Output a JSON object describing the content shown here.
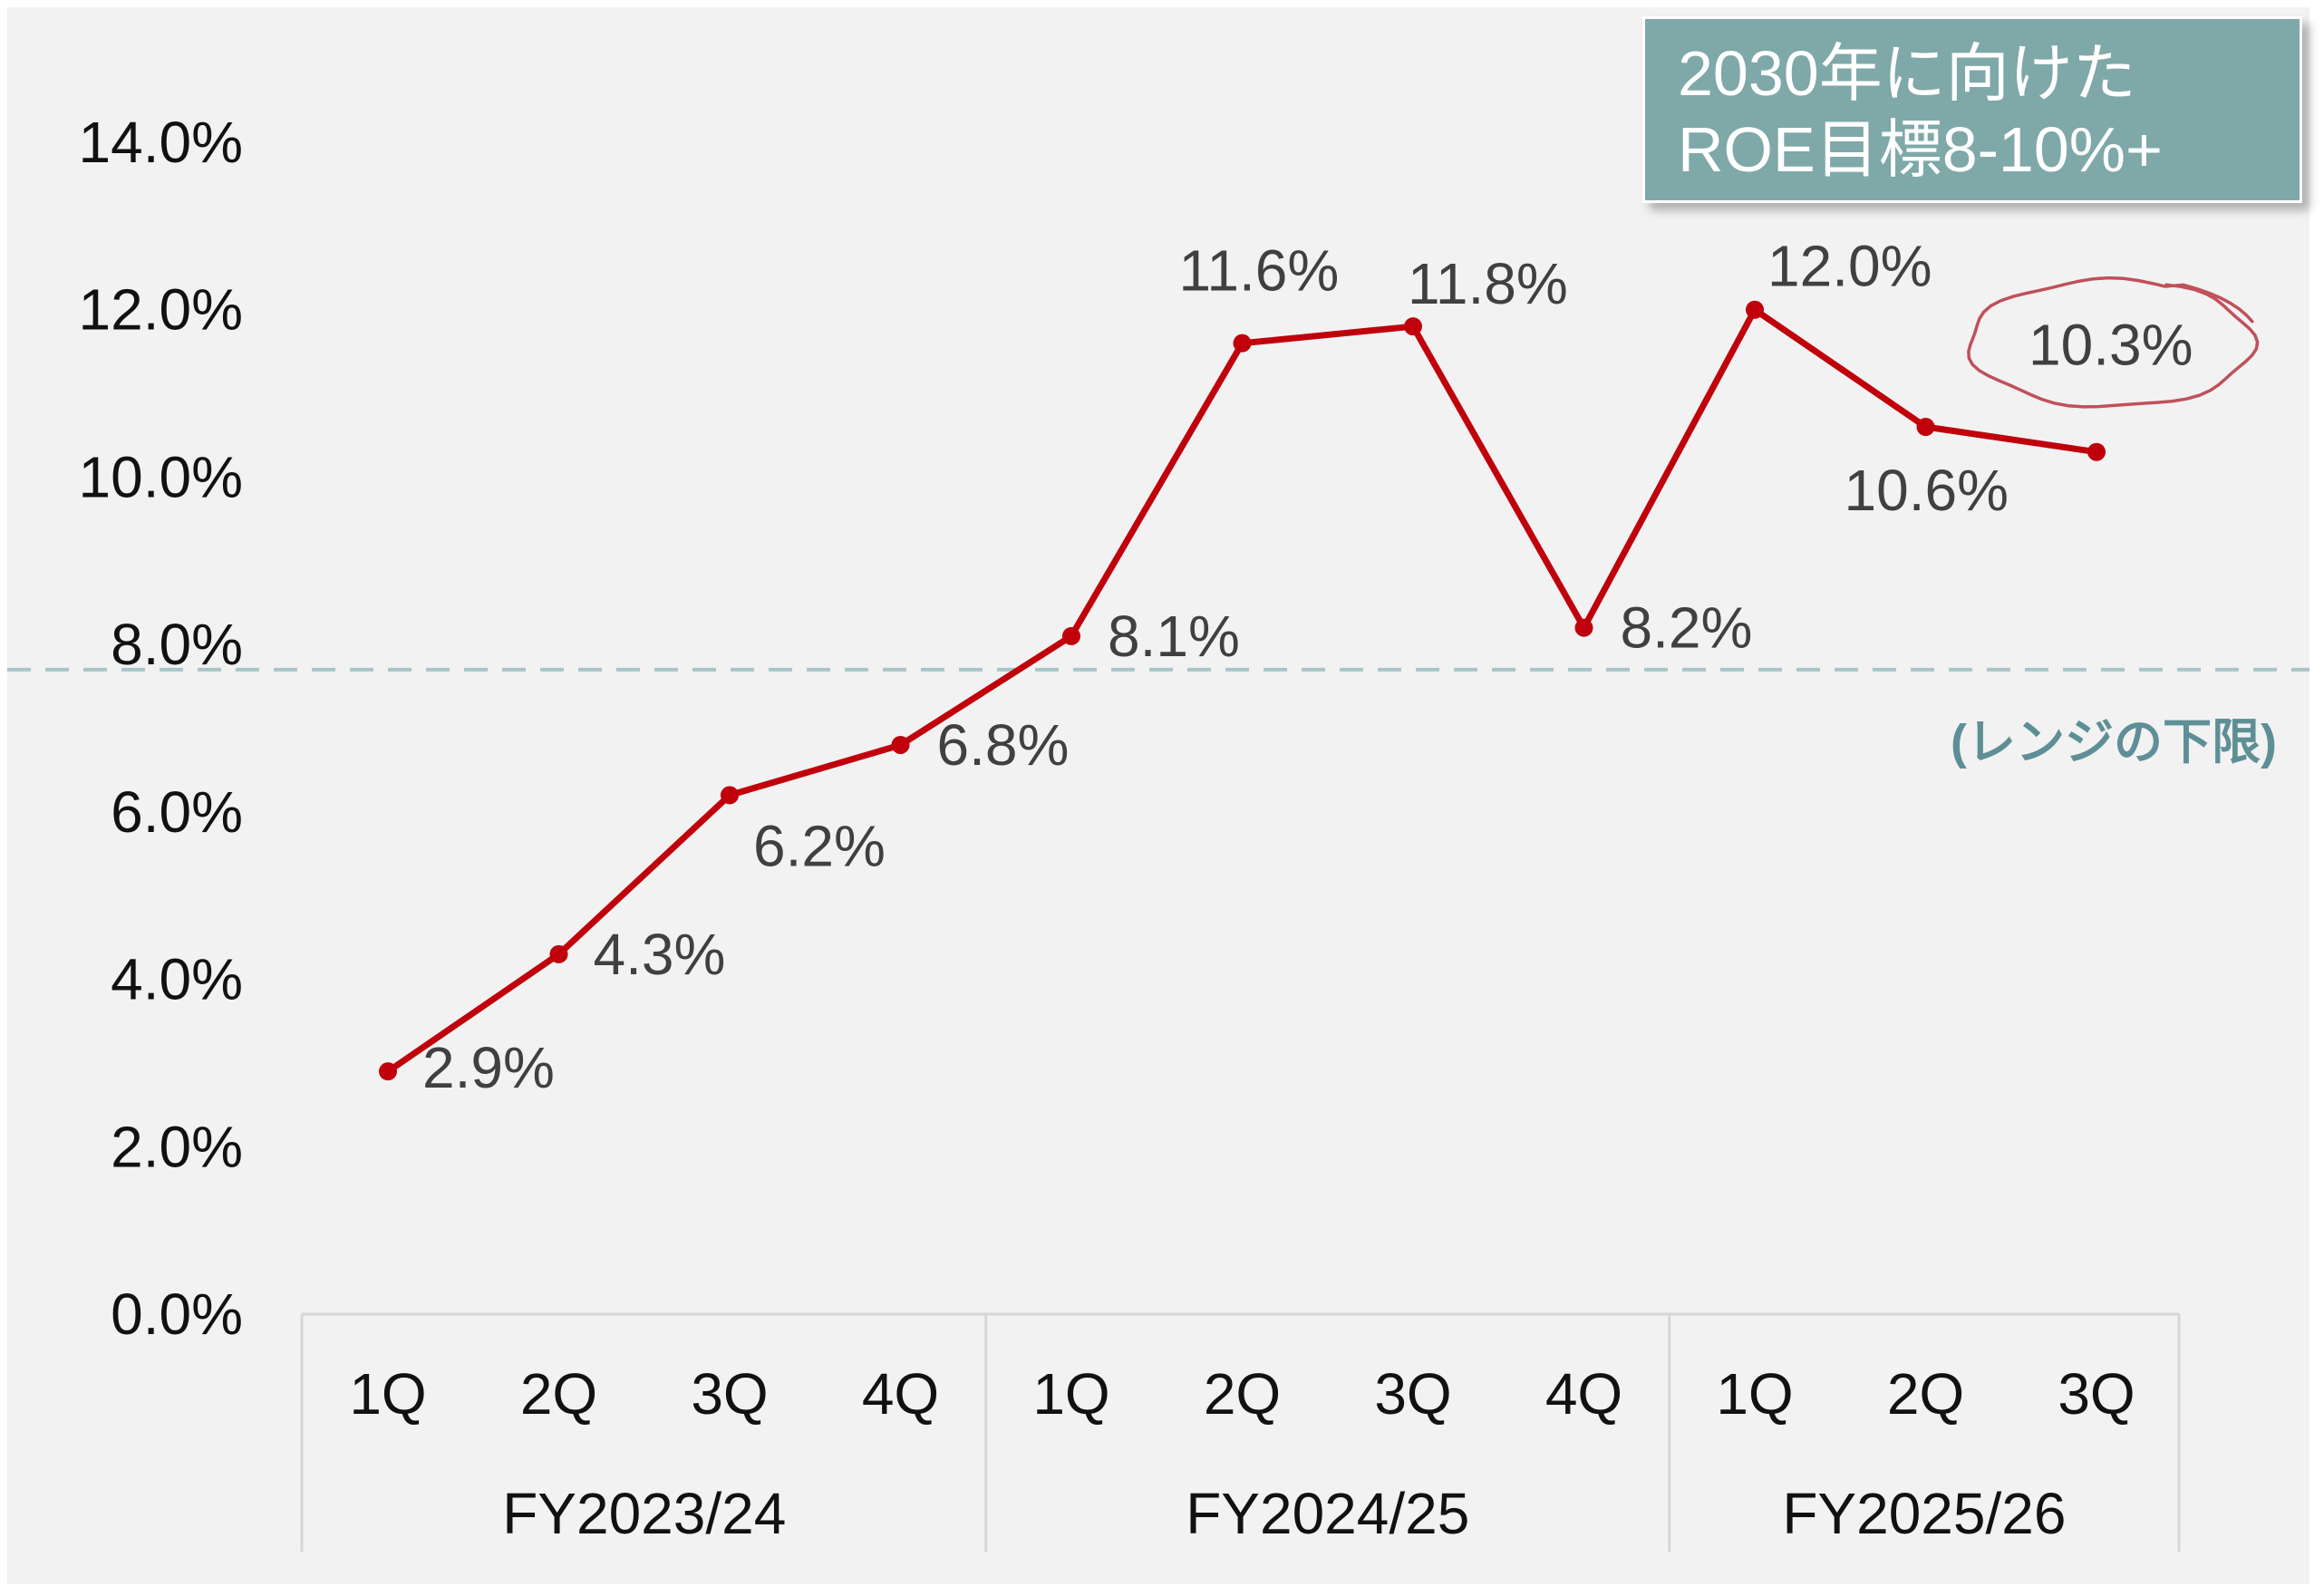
{
  "chart_data": {
    "type": "line",
    "title": "",
    "xlabel": "",
    "ylabel": "",
    "ylim": [
      0,
      14
    ],
    "y_ticks": [
      "0.0%",
      "2.0%",
      "4.0%",
      "6.0%",
      "8.0%",
      "10.0%",
      "12.0%",
      "14.0%"
    ],
    "categories": [
      "1Q",
      "2Q",
      "3Q",
      "4Q",
      "1Q",
      "2Q",
      "3Q",
      "4Q",
      "1Q",
      "2Q",
      "3Q"
    ],
    "groups": [
      {
        "label": "FY2023/24",
        "count": 4
      },
      {
        "label": "FY2024/25",
        "count": 4
      },
      {
        "label": "FY2025/26",
        "count": 3
      }
    ],
    "series": [
      {
        "values": [
          2.9,
          4.3,
          6.2,
          6.8,
          8.1,
          11.6,
          11.8,
          8.2,
          12.0,
          10.6,
          10.3
        ],
        "data_labels": [
          "2.9%",
          "4.3%",
          "6.2%",
          "6.8%",
          "8.1%",
          "11.6%",
          "11.8%",
          "8.2%",
          "12.0%",
          "10.6%",
          "10.3%"
        ],
        "color": "#c0000b"
      }
    ],
    "reference_line": {
      "value": 7.7,
      "style": "dashed",
      "color": "#a9c4c8",
      "label": "(レンジの下限)"
    },
    "highlight": {
      "index": 10,
      "shape": "hand-drawn circle",
      "color": "#c0505a"
    },
    "grid": false,
    "background": "#f2f2f2"
  },
  "callout": {
    "lines": [
      "2030年に向けた",
      "ROE目標8-10%+"
    ],
    "background": "#7fa8a8"
  }
}
